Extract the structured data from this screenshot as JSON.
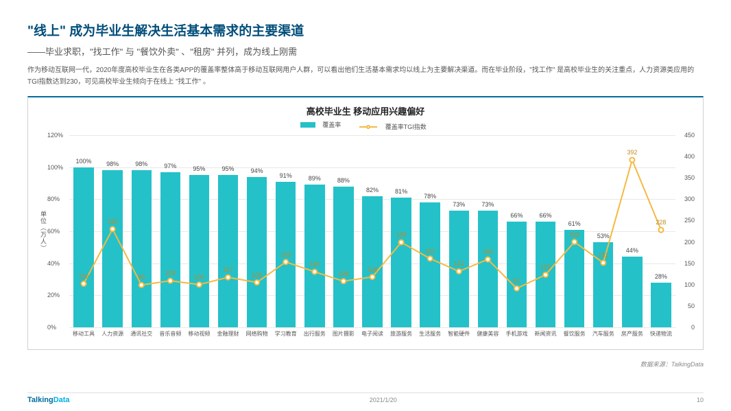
{
  "title": "\"线上\" 成为毕业生解决生活基本需求的主要渠道",
  "subtitle": "——毕业求职，\"找工作\" 与 \"餐饮外卖\" 、\"租房\" 并列，成为线上刚需",
  "body": "作为移动互联网一代，2020年度高校毕业生在各类APP的覆盖率整体高于移动互联网用户人群，可以看出他们生活基本需求均以线上为主要解决渠道。而在毕业阶段，\"找工作\" 是高校毕业生的关注重点，人力资源类应用的TGI指数达到230，可见高校毕业生倾向于在线上 \"找工作\" 。",
  "chart": {
    "type": "bar+line",
    "title": "高校毕业生  移动应用兴趣偏好",
    "legend_bar": "覆盖率",
    "legend_line": "覆盖率TGI指数",
    "y_left_label": "单位（万人）",
    "y_left": {
      "min": 0,
      "max": 120,
      "step": 20,
      "fmt": "pct"
    },
    "y_right": {
      "min": 0,
      "max": 450,
      "step": 50
    },
    "categories": [
      "移动工具",
      "人力资源",
      "通讯社交",
      "音乐音频",
      "移动视频",
      "金融理财",
      "网络购物",
      "学习教育",
      "出行服务",
      "图片摄影",
      "电子阅读",
      "旅游服务",
      "生活服务",
      "智能硬件",
      "健康美容",
      "手机游戏",
      "新闻资讯",
      "餐饮服务",
      "汽车服务",
      "房产服务",
      "快递物流"
    ],
    "coverage": [
      100,
      98,
      98,
      97,
      95,
      95,
      94,
      91,
      89,
      88,
      82,
      81,
      78,
      73,
      73,
      66,
      66,
      61,
      53,
      44,
      28
    ],
    "tgi": [
      102,
      230,
      99,
      109,
      100,
      117,
      105,
      153,
      130,
      108,
      118,
      199,
      161,
      131,
      159,
      91,
      123,
      200,
      151,
      392,
      228
    ],
    "bar_color": "#24c1c9",
    "line_color": "#f5b942",
    "marker_border": "#f5b942",
    "marker_fill": "#ffffff",
    "grid_color": "#e8e8e8",
    "bg": "#ffffff"
  },
  "source": "数据来源：TalkingData",
  "footer_date": "2021/1/20",
  "footer_page": "10",
  "logo_a": "Talking",
  "logo_b": "Data"
}
